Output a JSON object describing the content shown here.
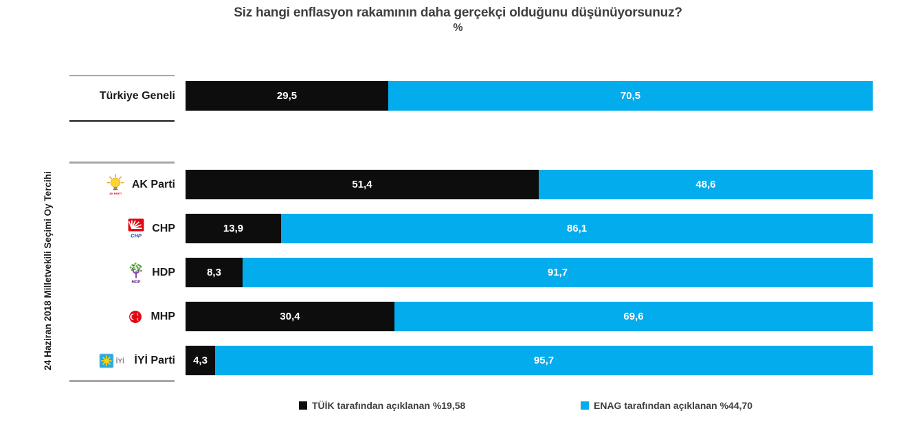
{
  "header": {
    "title": "Siz hangi enflasyon rakamının daha gerçekçi olduğunu düşünüyorsunuz?",
    "subtitle": "%"
  },
  "y_axis_label": "24 Haziran 2018 Milletvekili Seçimi Oy Tercihi",
  "colors": {
    "tuik_black": "#0d0d0d",
    "enag_blue": "#03acec",
    "separator_gray": "#a6a6a6",
    "title_gray": "#3f3f3f"
  },
  "legend": {
    "items": [
      {
        "label": "TÜİK tarafından açıklanan %19,58",
        "color": "#0d0d0d"
      },
      {
        "label": "ENAG tarafından açıklanan %44,70",
        "color": "#03acec"
      }
    ]
  },
  "icons": [
    {
      "name": "akparti-logo-icon",
      "depicts": "yellow light bulb emblem of AK Parti"
    },
    {
      "name": "chp-logo-icon",
      "depicts": "red square with white six-arrow sun, CHP"
    },
    {
      "name": "hdp-logo-icon",
      "depicts": "green tree with purple trunk, HDP"
    },
    {
      "name": "mhp-logo-icon",
      "depicts": "red circle with white crescents, MHP"
    },
    {
      "name": "iyi-logo-icon",
      "depicts": "blue square with yellow sun, İYİ"
    }
  ],
  "chart_data": {
    "type": "bar",
    "orientation": "horizontal",
    "stacked": true,
    "title": "Siz hangi enflasyon rakamının daha gerçekçi olduğunu düşünüyorsunuz?",
    "subtitle": "%",
    "ylabel": "24 Haziran 2018 Milletvekili Seçimi Oy Tercihi",
    "xlim": [
      0,
      100
    ],
    "grid": false,
    "legend_position": "bottom",
    "categories": [
      "Türkiye Geneli",
      "AK Parti",
      "CHP",
      "HDP",
      "MHP",
      "İYİ Parti"
    ],
    "series": [
      {
        "name": "TÜİK tarafından açıklanan %19,58",
        "color": "#0d0d0d",
        "values": [
          29.5,
          51.4,
          13.9,
          8.3,
          30.4,
          4.3
        ],
        "labels": [
          "29,5",
          "51,4",
          "13,9",
          "8,3",
          "30,4",
          "4,3"
        ]
      },
      {
        "name": "ENAG tarafından açıklanan %44,70",
        "color": "#03acec",
        "values": [
          70.5,
          48.6,
          86.1,
          91.7,
          69.6,
          95.7
        ],
        "labels": [
          "70,5",
          "48,6",
          "86,1",
          "91,7",
          "69,6",
          "95,7"
        ]
      }
    ]
  }
}
